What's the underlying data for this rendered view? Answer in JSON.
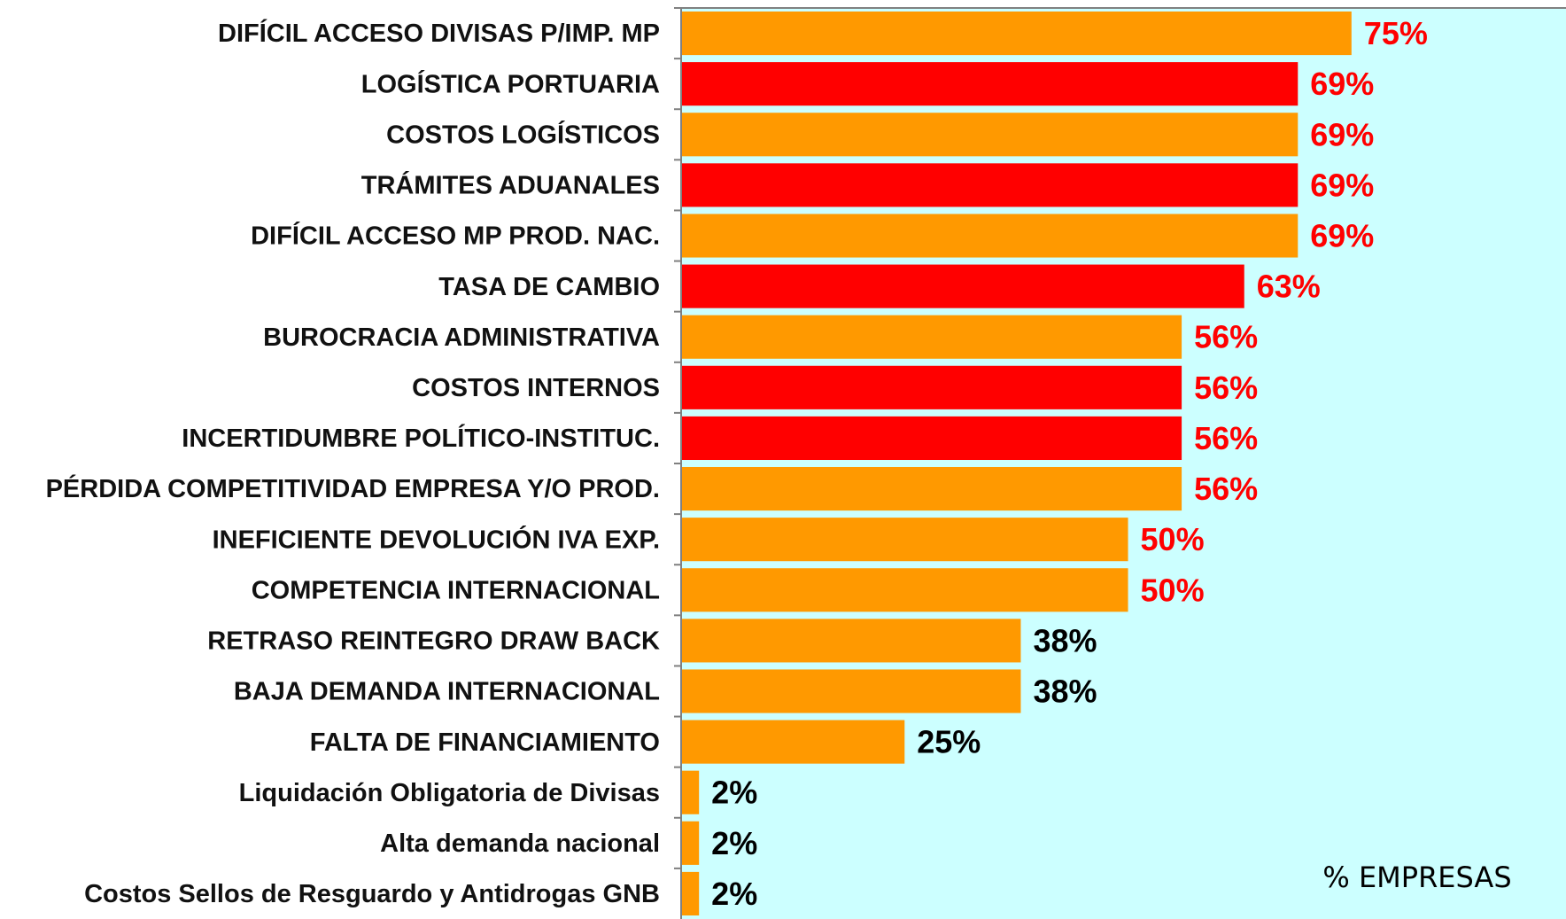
{
  "chart_data": {
    "type": "bar",
    "orientation": "horizontal",
    "categories": [
      "DIFÍCIL ACCESO DIVISAS P/IMP. MP",
      "LOGÍSTICA PORTUARIA",
      "COSTOS LOGÍSTICOS",
      "TRÁMITES ADUANALES",
      "DIFÍCIL ACCESO MP PROD. NAC.",
      "TASA DE CAMBIO",
      "BUROCRACIA ADMINISTRATIVA",
      "COSTOS INTERNOS",
      "INCERTIDUMBRE POLÍTICO-INSTITUC.",
      "PÉRDIDA COMPETITIVIDAD EMPRESA Y/O PROD.",
      "INEFICIENTE DEVOLUCIÓN IVA EXP.",
      "COMPETENCIA INTERNACIONAL",
      "RETRASO REINTEGRO DRAW BACK",
      "BAJA DEMANDA INTERNACIONAL",
      "FALTA DE FINANCIAMIENTO",
      "Liquidación Obligatoria de Divisas",
      "Alta demanda nacional",
      "Costos Sellos de Resguardo y Antidrogas GNB"
    ],
    "values": [
      75,
      69,
      69,
      69,
      69,
      63,
      56,
      56,
      56,
      56,
      50,
      50,
      38,
      38,
      25,
      2,
      2,
      2
    ],
    "value_labels": [
      "75%",
      "69%",
      "69%",
      "69%",
      "69%",
      "63%",
      "56%",
      "56%",
      "56%",
      "56%",
      "50%",
      "50%",
      "38%",
      "38%",
      "25%",
      "2%",
      "2%",
      "2%"
    ],
    "colors": [
      "#ff9900",
      "#ff0000",
      "#ff9900",
      "#ff0000",
      "#ff9900",
      "#ff0000",
      "#ff9900",
      "#ff0000",
      "#ff0000",
      "#ff9900",
      "#ff9900",
      "#ff9900",
      "#ff9900",
      "#ff9900",
      "#ff9900",
      "#ff9900",
      "#ff9900",
      "#ff9900"
    ],
    "label_colors": [
      "#ff0000",
      "#ff0000",
      "#ff0000",
      "#ff0000",
      "#ff0000",
      "#ff0000",
      "#ff0000",
      "#ff0000",
      "#ff0000",
      "#ff0000",
      "#ff0000",
      "#ff0000",
      "#000000",
      "#000000",
      "#000000",
      "#000000",
      "#000000",
      "#000000"
    ],
    "plot_background": "#ccffff",
    "xlim": [
      0,
      99
    ],
    "annotation": "% EMPRESAS"
  }
}
